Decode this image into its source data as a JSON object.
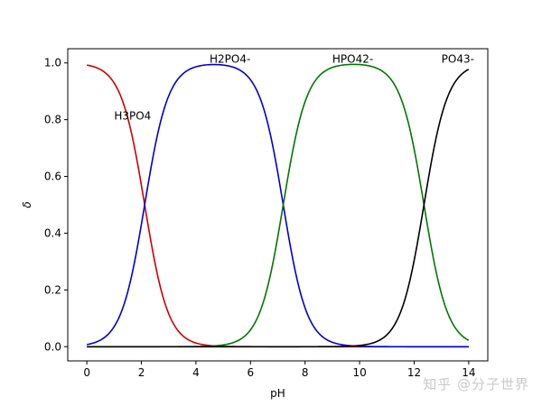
{
  "chart_data": {
    "type": "line",
    "title": "",
    "xlabel": "pH",
    "ylabel": "δ",
    "xlim": [
      -0.7,
      14.7
    ],
    "ylim": [
      -0.05,
      1.05
    ],
    "xticks": [
      0,
      2,
      4,
      6,
      8,
      10,
      12,
      14
    ],
    "yticks": [
      0.0,
      0.2,
      0.4,
      0.6,
      0.8,
      1.0
    ],
    "xtick_labels": [
      "0",
      "2",
      "4",
      "6",
      "8",
      "10",
      "12",
      "14"
    ],
    "ytick_labels": [
      "0.0",
      "0.2",
      "0.4",
      "0.6",
      "0.8",
      "1.0"
    ],
    "grid": false,
    "legend": "none",
    "pKa": [
      2.12,
      7.2,
      12.36
    ],
    "series": [
      {
        "color": "#cc0000",
        "key": "h3po4"
      },
      {
        "color": "#0000cc",
        "key": "h2po4"
      },
      {
        "color": "#007700",
        "key": "hpo4"
      },
      {
        "color": "#000000",
        "key": "po4"
      }
    ],
    "annotations": [
      {
        "text": "H3PO4",
        "x": 1.0,
        "y": 0.8
      },
      {
        "text": "H2PO4-",
        "x": 4.5,
        "y": 1.0
      },
      {
        "text": "HPO42-",
        "x": 9.0,
        "y": 1.0
      },
      {
        "text": "PO43-",
        "x": 13.0,
        "y": 1.0
      }
    ]
  },
  "watermark": "知乎 @分子世界"
}
